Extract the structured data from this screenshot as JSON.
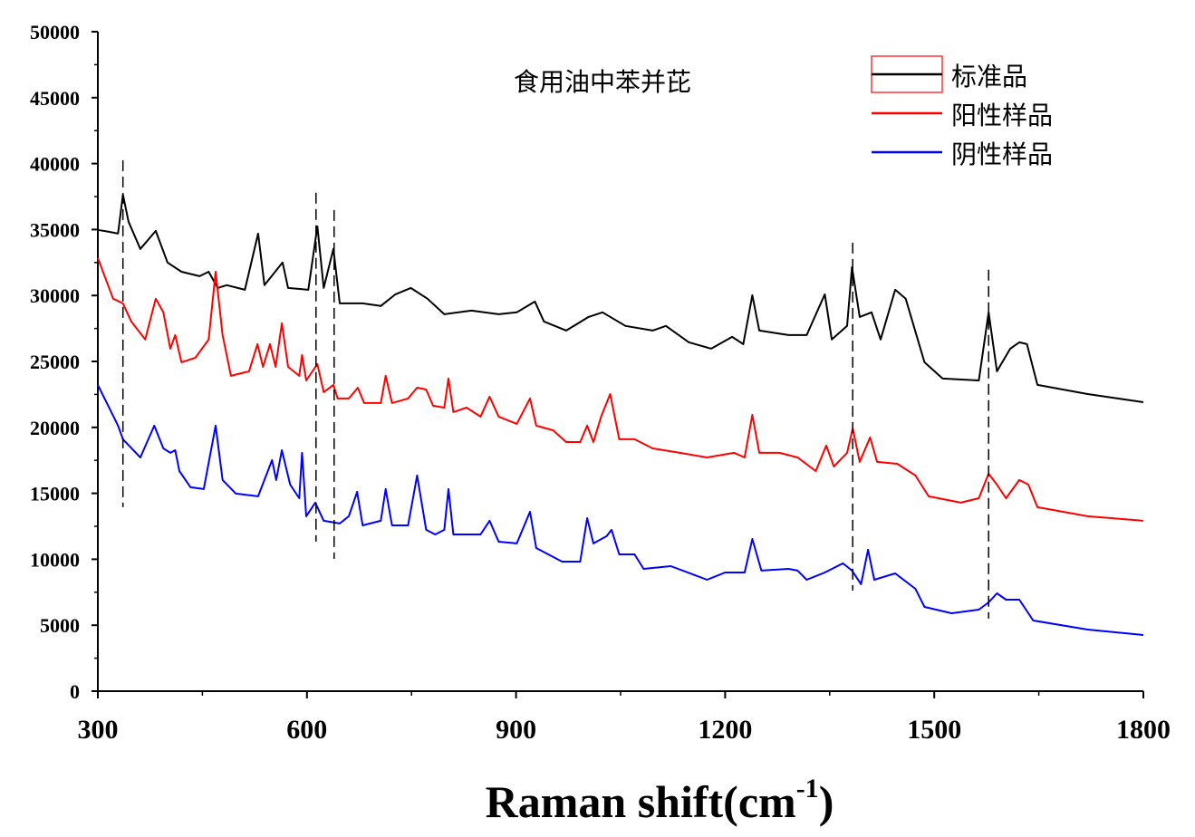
{
  "chart_data": {
    "type": "line",
    "title": "食用油中苯并芘",
    "xlabel": "Raman shift(cm",
    "xlabel_sup": "-1",
    "xlabel_close": ")",
    "ylabel": "",
    "xlim": [
      300,
      1800
    ],
    "ylim": [
      0,
      50000
    ],
    "xticks": [
      300,
      600,
      900,
      1200,
      1500,
      1800
    ],
    "yticks": [
      0,
      5000,
      10000,
      15000,
      20000,
      25000,
      30000,
      35000,
      40000,
      45000,
      50000
    ],
    "grid": false,
    "legend_position": "top-right",
    "series": [
      {
        "name": "标准品",
        "color": "#000000",
        "points": [
          [
            300,
            34970
          ],
          [
            316,
            34830
          ],
          [
            329,
            34700
          ],
          [
            336,
            37650
          ],
          [
            344,
            35590
          ],
          [
            361,
            33530
          ],
          [
            383,
            34900
          ],
          [
            400,
            32500
          ],
          [
            420,
            31800
          ],
          [
            446,
            31460
          ],
          [
            459,
            31800
          ],
          [
            472,
            30570
          ],
          [
            485,
            30780
          ],
          [
            511,
            30430
          ],
          [
            530,
            34690
          ],
          [
            539,
            30780
          ],
          [
            565,
            32500
          ],
          [
            573,
            30570
          ],
          [
            602,
            30430
          ],
          [
            615,
            35240
          ],
          [
            624,
            30570
          ],
          [
            638,
            33530
          ],
          [
            647,
            29400
          ],
          [
            680,
            29400
          ],
          [
            706,
            29200
          ],
          [
            727,
            30090
          ],
          [
            749,
            30570
          ],
          [
            773,
            29750
          ],
          [
            797,
            28580
          ],
          [
            836,
            28850
          ],
          [
            875,
            28580
          ],
          [
            901,
            28720
          ],
          [
            927,
            29540
          ],
          [
            940,
            28030
          ],
          [
            972,
            27340
          ],
          [
            1004,
            28370
          ],
          [
            1024,
            28720
          ],
          [
            1057,
            27690
          ],
          [
            1096,
            27340
          ],
          [
            1115,
            27690
          ],
          [
            1148,
            26450
          ],
          [
            1180,
            25970
          ],
          [
            1210,
            26860
          ],
          [
            1226,
            26310
          ],
          [
            1239,
            30020
          ],
          [
            1249,
            27340
          ],
          [
            1291,
            27000
          ],
          [
            1317,
            27000
          ],
          [
            1343,
            30090
          ],
          [
            1353,
            26660
          ],
          [
            1375,
            27690
          ],
          [
            1382,
            32150
          ],
          [
            1393,
            28370
          ],
          [
            1410,
            28720
          ],
          [
            1423,
            26660
          ],
          [
            1444,
            30430
          ],
          [
            1459,
            29750
          ],
          [
            1486,
            24940
          ],
          [
            1512,
            23700
          ],
          [
            1564,
            23560
          ],
          [
            1578,
            28720
          ],
          [
            1590,
            24250
          ],
          [
            1609,
            25970
          ],
          [
            1622,
            26450
          ],
          [
            1633,
            26310
          ],
          [
            1648,
            23220
          ],
          [
            1720,
            22530
          ],
          [
            1800,
            21910
          ]
        ]
      },
      {
        "name": "阳性样品",
        "color": "#ff0000",
        "points": [
          [
            300,
            32840
          ],
          [
            322,
            29750
          ],
          [
            336,
            29400
          ],
          [
            348,
            28030
          ],
          [
            368,
            26660
          ],
          [
            383,
            29750
          ],
          [
            394,
            28720
          ],
          [
            404,
            25970
          ],
          [
            411,
            27000
          ],
          [
            420,
            24940
          ],
          [
            440,
            25280
          ],
          [
            459,
            26660
          ],
          [
            469,
            31800
          ],
          [
            479,
            27000
          ],
          [
            491,
            23910
          ],
          [
            517,
            24250
          ],
          [
            529,
            26310
          ],
          [
            537,
            24590
          ],
          [
            547,
            26310
          ],
          [
            555,
            24590
          ],
          [
            564,
            27890
          ],
          [
            573,
            24590
          ],
          [
            589,
            23910
          ],
          [
            593,
            25490
          ],
          [
            599,
            23560
          ],
          [
            615,
            24800
          ],
          [
            624,
            22670
          ],
          [
            638,
            23220
          ],
          [
            644,
            22190
          ],
          [
            660,
            22190
          ],
          [
            673,
            23010
          ],
          [
            682,
            21850
          ],
          [
            706,
            21850
          ],
          [
            713,
            23910
          ],
          [
            722,
            21850
          ],
          [
            745,
            22190
          ],
          [
            758,
            23010
          ],
          [
            771,
            22870
          ],
          [
            781,
            21640
          ],
          [
            797,
            21500
          ],
          [
            803,
            23700
          ],
          [
            810,
            21160
          ],
          [
            829,
            21500
          ],
          [
            849,
            20820
          ],
          [
            862,
            22330
          ],
          [
            875,
            20820
          ],
          [
            901,
            20270
          ],
          [
            920,
            22190
          ],
          [
            929,
            20130
          ],
          [
            953,
            19780
          ],
          [
            972,
            18890
          ],
          [
            992,
            18890
          ],
          [
            1002,
            20130
          ],
          [
            1011,
            18890
          ],
          [
            1022,
            20820
          ],
          [
            1035,
            22530
          ],
          [
            1048,
            19100
          ],
          [
            1070,
            19100
          ],
          [
            1096,
            18410
          ],
          [
            1135,
            18070
          ],
          [
            1174,
            17720
          ],
          [
            1213,
            18070
          ],
          [
            1228,
            17720
          ],
          [
            1239,
            20950
          ],
          [
            1249,
            18070
          ],
          [
            1278,
            18070
          ],
          [
            1304,
            17720
          ],
          [
            1330,
            16690
          ],
          [
            1345,
            18620
          ],
          [
            1356,
            17030
          ],
          [
            1375,
            18070
          ],
          [
            1383,
            19920
          ],
          [
            1393,
            17380
          ],
          [
            1408,
            19240
          ],
          [
            1418,
            17380
          ],
          [
            1447,
            17240
          ],
          [
            1473,
            16350
          ],
          [
            1492,
            14770
          ],
          [
            1538,
            14290
          ],
          [
            1564,
            14630
          ],
          [
            1578,
            16490
          ],
          [
            1590,
            15660
          ],
          [
            1603,
            14630
          ],
          [
            1622,
            16010
          ],
          [
            1635,
            15660
          ],
          [
            1648,
            13950
          ],
          [
            1720,
            13260
          ],
          [
            1800,
            12920
          ]
        ]
      },
      {
        "name": "阴性样品",
        "color": "#0000ff",
        "points": [
          [
            300,
            23220
          ],
          [
            329,
            20130
          ],
          [
            336,
            19100
          ],
          [
            361,
            17720
          ],
          [
            381,
            20130
          ],
          [
            394,
            18410
          ],
          [
            404,
            18070
          ],
          [
            411,
            18270
          ],
          [
            417,
            16690
          ],
          [
            433,
            15460
          ],
          [
            452,
            15320
          ],
          [
            469,
            20130
          ],
          [
            479,
            16010
          ],
          [
            498,
            14980
          ],
          [
            530,
            14770
          ],
          [
            550,
            17520
          ],
          [
            556,
            16010
          ],
          [
            564,
            18270
          ],
          [
            576,
            15660
          ],
          [
            589,
            14630
          ],
          [
            593,
            18070
          ],
          [
            599,
            13260
          ],
          [
            612,
            14290
          ],
          [
            624,
            12920
          ],
          [
            647,
            12710
          ],
          [
            660,
            13260
          ],
          [
            672,
            15110
          ],
          [
            680,
            12570
          ],
          [
            706,
            12920
          ],
          [
            713,
            15320
          ],
          [
            722,
            12570
          ],
          [
            745,
            12570
          ],
          [
            758,
            16350
          ],
          [
            771,
            12230
          ],
          [
            784,
            11880
          ],
          [
            797,
            12230
          ],
          [
            803,
            15320
          ],
          [
            810,
            11880
          ],
          [
            849,
            11880
          ],
          [
            862,
            12920
          ],
          [
            875,
            11330
          ],
          [
            901,
            11200
          ],
          [
            920,
            13600
          ],
          [
            929,
            10850
          ],
          [
            966,
            9820
          ],
          [
            992,
            9820
          ],
          [
            1002,
            13120
          ],
          [
            1011,
            11200
          ],
          [
            1030,
            11750
          ],
          [
            1037,
            12230
          ],
          [
            1048,
            10370
          ],
          [
            1070,
            10370
          ],
          [
            1083,
            9270
          ],
          [
            1122,
            9480
          ],
          [
            1174,
            8450
          ],
          [
            1200,
            9000
          ],
          [
            1228,
            9000
          ],
          [
            1239,
            11540
          ],
          [
            1252,
            9140
          ],
          [
            1291,
            9270
          ],
          [
            1304,
            9140
          ],
          [
            1317,
            8450
          ],
          [
            1343,
            9000
          ],
          [
            1369,
            9690
          ],
          [
            1382,
            9140
          ],
          [
            1395,
            8110
          ],
          [
            1405,
            10720
          ],
          [
            1414,
            8450
          ],
          [
            1444,
            8930
          ],
          [
            1473,
            7760
          ],
          [
            1486,
            6390
          ],
          [
            1525,
            5910
          ],
          [
            1564,
            6180
          ],
          [
            1578,
            6730
          ],
          [
            1590,
            7420
          ],
          [
            1603,
            6940
          ],
          [
            1622,
            6940
          ],
          [
            1642,
            5360
          ],
          [
            1720,
            4670
          ],
          [
            1800,
            4260
          ]
        ]
      }
    ],
    "reference_lines": [
      {
        "x": 336,
        "y_range": [
          13950,
          40260
        ]
      },
      {
        "x": 613,
        "y_range": [
          11340,
          37790
        ]
      },
      {
        "x": 639,
        "y_range": [
          10030,
          36480
        ]
      },
      {
        "x": 1383,
        "y_range": [
          7630,
          34010
        ]
      },
      {
        "x": 1578,
        "y_range": [
          5500,
          31950
        ]
      }
    ]
  }
}
